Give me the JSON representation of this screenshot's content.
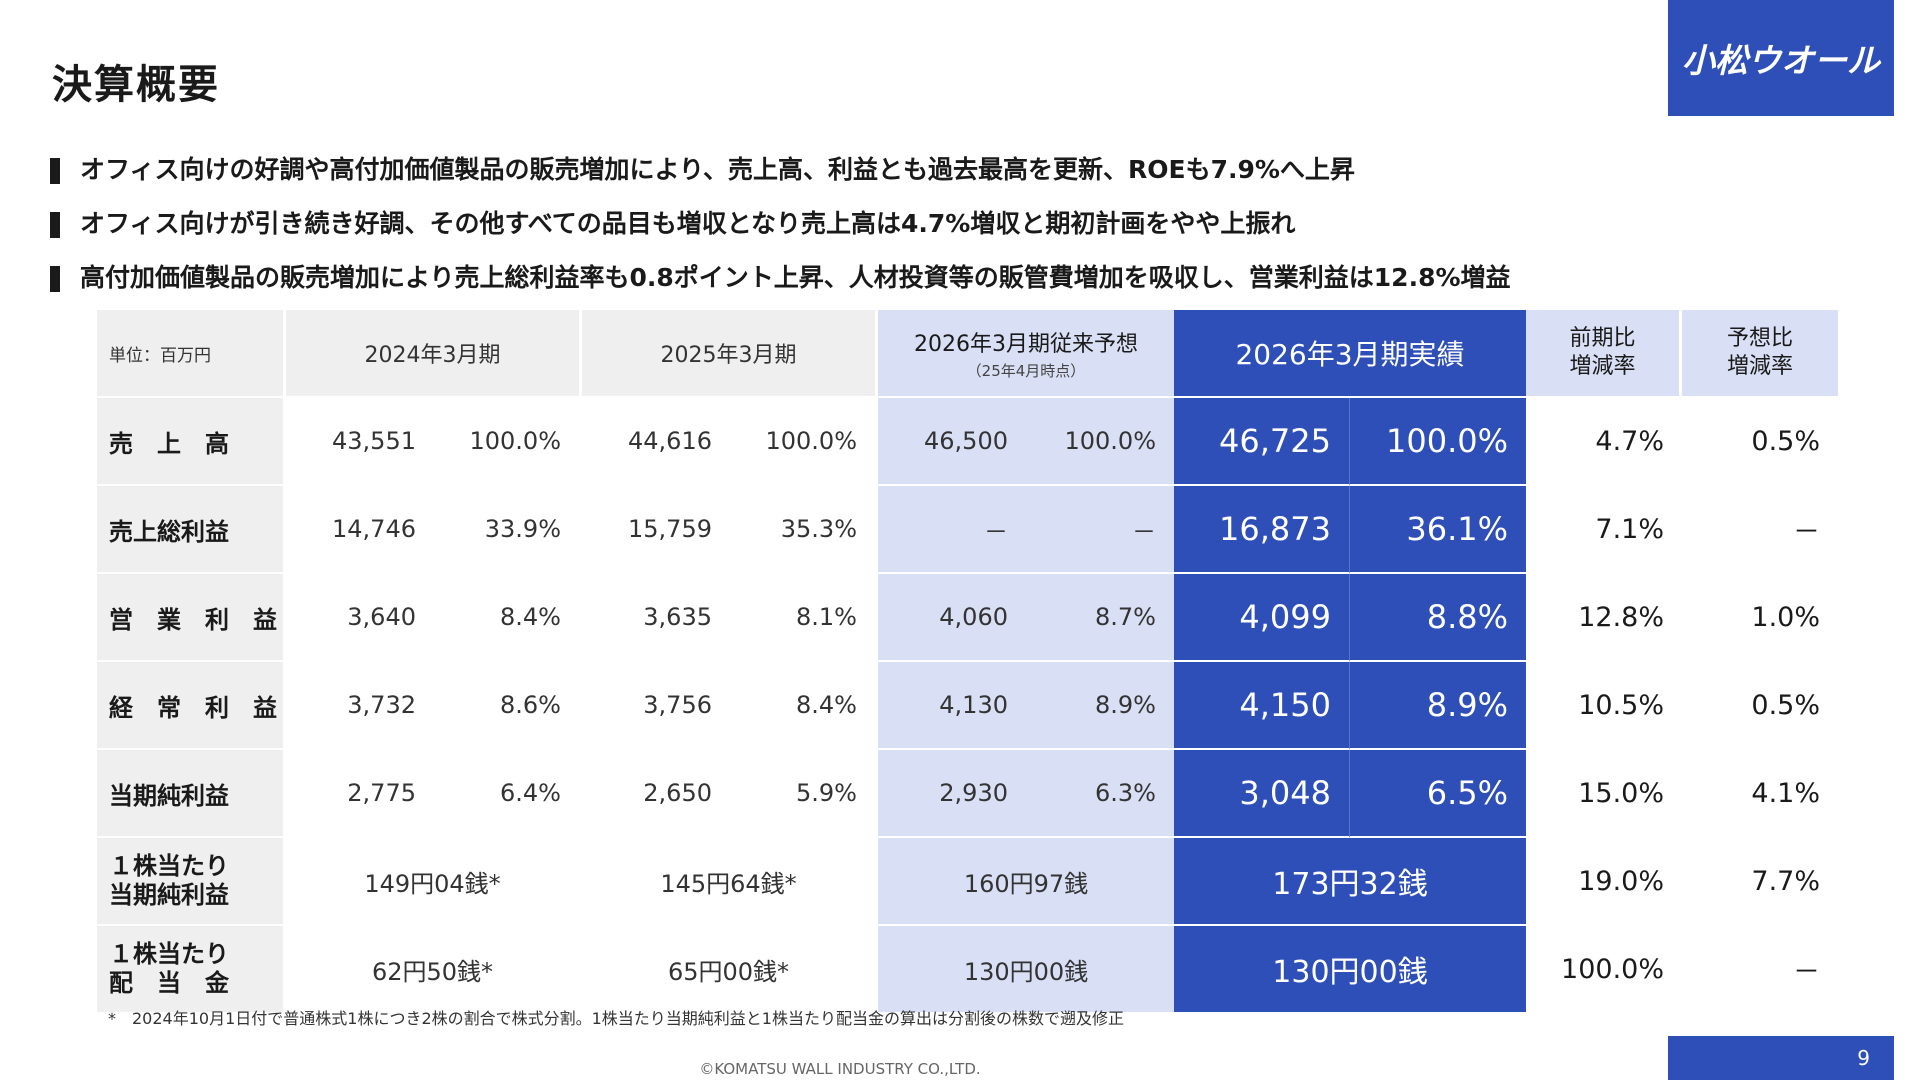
{
  "page": {
    "title": "決算概要",
    "logo_text": "小松ウオール",
    "page_number": "9",
    "copyright": "©KOMATSU WALL INDUSTRY CO.,LTD.",
    "footnote": "*　2024年10月1日付で普通株式1株につき2株の割合で株式分割。1株当たり当期純利益と1株当たり配当金の算出は分割後の株数で遡及修正"
  },
  "bullets": [
    "オフィス向けの好調や高付加価値製品の販売増加により、売上高、利益とも過去最高を更新、ROEも7.9%へ上昇",
    "オフィス向けが引き続き好調、その他すべての品目も増収となり売上高は4.7%増収と期初計画をやや上振れ",
    "高付加価値製品の販売増加により売上総利益率も0.8ポイント上昇、人材投資等の販管費増加を吸収し、営業利益は12.8%増益"
  ],
  "table": {
    "unit_label": "単位：百万円",
    "headers": {
      "fy2024": "2024年3月期",
      "fy2025": "2025年3月期",
      "forecast": "2026年3月期従来予想",
      "forecast_sub": "（25年4月時点）",
      "actual": "2026年3月期実績",
      "yoy": [
        "前期比",
        "増減率"
      ],
      "vs_plan": [
        "予想比",
        "増減率"
      ]
    },
    "rows": [
      {
        "label": "売　上　高",
        "fy2024": [
          "43,551",
          "100.0%"
        ],
        "fy2025": [
          "44,616",
          "100.0%"
        ],
        "forecast": [
          "46,500",
          "100.0%"
        ],
        "actual": [
          "46,725",
          "100.0%"
        ],
        "yoy": "4.7%",
        "vs_plan": "0.5%"
      },
      {
        "label": "売上総利益",
        "fy2024": [
          "14,746",
          "33.9%"
        ],
        "fy2025": [
          "15,759",
          "35.3%"
        ],
        "forecast": [
          "－",
          "－"
        ],
        "actual": [
          "16,873",
          "36.1%"
        ],
        "yoy": "7.1%",
        "vs_plan": "－"
      },
      {
        "label": "営　業　利　益",
        "fy2024": [
          "3,640",
          "8.4%"
        ],
        "fy2025": [
          "3,635",
          "8.1%"
        ],
        "forecast": [
          "4,060",
          "8.7%"
        ],
        "actual": [
          "4,099",
          "8.8%"
        ],
        "yoy": "12.8%",
        "vs_plan": "1.0%"
      },
      {
        "label": "経　常　利　益",
        "fy2024": [
          "3,732",
          "8.6%"
        ],
        "fy2025": [
          "3,756",
          "8.4%"
        ],
        "forecast": [
          "4,130",
          "8.9%"
        ],
        "actual": [
          "4,150",
          "8.9%"
        ],
        "yoy": "10.5%",
        "vs_plan": "0.5%"
      },
      {
        "label": "当期純利益",
        "fy2024": [
          "2,775",
          "6.4%"
        ],
        "fy2025": [
          "2,650",
          "5.9%"
        ],
        "forecast": [
          "2,930",
          "6.3%"
        ],
        "actual": [
          "3,048",
          "6.5%"
        ],
        "yoy": "15.0%",
        "vs_plan": "4.1%"
      },
      {
        "label": [
          "１株当たり",
          "当期純利益"
        ],
        "fy2024": "149円04銭*",
        "fy2025": "145円64銭*",
        "forecast": "160円97銭",
        "actual": "173円32銭",
        "yoy": "19.0%",
        "vs_plan": "7.7%"
      },
      {
        "label": [
          "１株当たり",
          "配　当　金"
        ],
        "fy2024": "62円50銭*",
        "fy2025": "65円00銭*",
        "forecast": "130円00銭",
        "actual": "130円00銭",
        "yoy": "100.0%",
        "vs_plan": "－"
      }
    ]
  }
}
